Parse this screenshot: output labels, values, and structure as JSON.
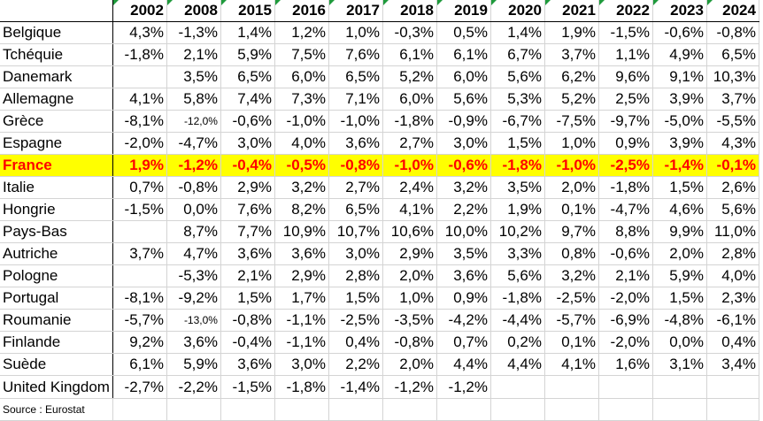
{
  "years": [
    "2002",
    "2008",
    "2015",
    "2016",
    "2017",
    "2018",
    "2019",
    "2020",
    "2021",
    "2022",
    "2023",
    "2024"
  ],
  "rows": [
    {
      "country": "Belgique",
      "values": [
        "4,3%",
        "-1,3%",
        "1,4%",
        "1,2%",
        "1,0%",
        "-0,3%",
        "0,5%",
        "1,4%",
        "1,9%",
        "-1,5%",
        "-0,6%",
        "-0,8%"
      ]
    },
    {
      "country": "Tchéquie",
      "values": [
        "-1,8%",
        "2,1%",
        "5,9%",
        "7,5%",
        "7,6%",
        "6,1%",
        "6,1%",
        "6,7%",
        "3,7%",
        "1,1%",
        "4,9%",
        "6,5%"
      ]
    },
    {
      "country": "Danemark",
      "values": [
        "",
        "3,5%",
        "6,5%",
        "6,0%",
        "6,5%",
        "5,2%",
        "6,0%",
        "5,6%",
        "6,2%",
        "9,6%",
        "9,1%",
        "10,3%"
      ]
    },
    {
      "country": "Allemagne",
      "values": [
        "4,1%",
        "5,8%",
        "7,4%",
        "7,3%",
        "7,1%",
        "6,0%",
        "5,6%",
        "5,3%",
        "5,2%",
        "2,5%",
        "3,9%",
        "3,7%"
      ]
    },
    {
      "country": "Grèce",
      "values": [
        "-8,1%",
        "-12,0%",
        "-0,6%",
        "-1,0%",
        "-1,0%",
        "-1,8%",
        "-0,9%",
        "-6,7%",
        "-7,5%",
        "-9,7%",
        "-5,0%",
        "-5,5%"
      ],
      "small": [
        1
      ]
    },
    {
      "country": "Espagne",
      "values": [
        "-2,0%",
        "-4,7%",
        "3,0%",
        "4,0%",
        "3,6%",
        "2,7%",
        "3,0%",
        "1,5%",
        "1,0%",
        "0,9%",
        "3,9%",
        "4,3%"
      ]
    },
    {
      "country": "France",
      "values": [
        "1,9%",
        "-1,2%",
        "-0,4%",
        "-0,5%",
        "-0,8%",
        "-1,0%",
        "-0,6%",
        "-1,8%",
        "-1,0%",
        "-2,5%",
        "-1,4%",
        "-0,1%"
      ],
      "highlight": true
    },
    {
      "country": "Italie",
      "values": [
        "0,7%",
        "-0,8%",
        "2,9%",
        "3,2%",
        "2,7%",
        "2,4%",
        "3,2%",
        "3,5%",
        "2,0%",
        "-1,8%",
        "1,5%",
        "2,6%"
      ]
    },
    {
      "country": "Hongrie",
      "values": [
        "-1,5%",
        "0,0%",
        "7,6%",
        "8,2%",
        "6,5%",
        "4,1%",
        "2,2%",
        "1,9%",
        "0,1%",
        "-4,7%",
        "4,6%",
        "5,6%"
      ]
    },
    {
      "country": "Pays-Bas",
      "values": [
        "",
        "8,7%",
        "7,7%",
        "10,9%",
        "10,7%",
        "10,6%",
        "10,0%",
        "10,2%",
        "9,7%",
        "8,8%",
        "9,9%",
        "11,0%"
      ]
    },
    {
      "country": "Autriche",
      "values": [
        "3,7%",
        "4,7%",
        "3,6%",
        "3,6%",
        "3,0%",
        "2,9%",
        "3,5%",
        "3,3%",
        "0,8%",
        "-0,6%",
        "2,0%",
        "2,8%"
      ]
    },
    {
      "country": "Pologne",
      "values": [
        "",
        "-5,3%",
        "2,1%",
        "2,9%",
        "2,8%",
        "2,0%",
        "3,6%",
        "5,6%",
        "3,2%",
        "2,1%",
        "5,9%",
        "4,0%"
      ]
    },
    {
      "country": "Portugal",
      "values": [
        "-8,1%",
        "-9,2%",
        "1,5%",
        "1,7%",
        "1,5%",
        "1,0%",
        "0,9%",
        "-1,8%",
        "-2,5%",
        "-2,0%",
        "1,5%",
        "2,3%"
      ]
    },
    {
      "country": "Roumanie",
      "values": [
        "-5,7%",
        "-13,0%",
        "-0,8%",
        "-1,1%",
        "-2,5%",
        "-3,5%",
        "-4,2%",
        "-4,4%",
        "-5,7%",
        "-6,9%",
        "-4,8%",
        "-6,1%"
      ],
      "small": [
        1
      ]
    },
    {
      "country": "Finlande",
      "values": [
        "9,2%",
        "3,6%",
        "-0,4%",
        "-1,1%",
        "0,4%",
        "-0,8%",
        "0,7%",
        "0,2%",
        "0,1%",
        "-2,0%",
        "0,0%",
        "0,4%"
      ]
    },
    {
      "country": "Suède",
      "values": [
        "6,1%",
        "5,9%",
        "3,6%",
        "3,0%",
        "2,2%",
        "2,0%",
        "4,4%",
        "4,4%",
        "4,1%",
        "1,6%",
        "3,1%",
        "3,4%"
      ]
    },
    {
      "country": "United Kingdom",
      "values": [
        "-2,7%",
        "-2,2%",
        "-1,5%",
        "-1,8%",
        "-1,4%",
        "-1,2%",
        "-1,2%",
        "",
        "",
        "",
        "",
        ""
      ]
    }
  ],
  "source": "Source : Eurostat"
}
